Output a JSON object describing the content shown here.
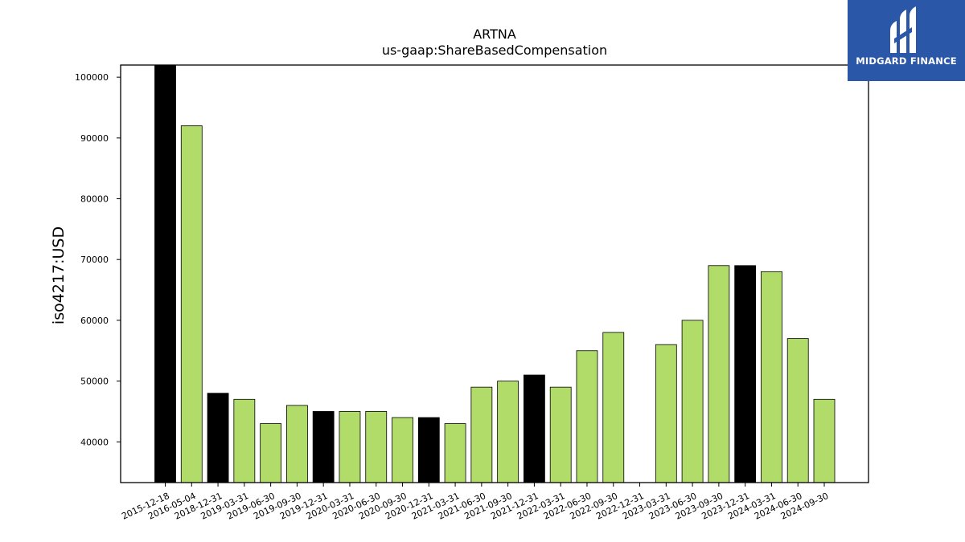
{
  "brand": {
    "name": "MIDGARD FINANCE",
    "bg_color": "#2b57a8",
    "icon": "midgard-finance-logo-mark"
  },
  "chart_data": {
    "type": "bar",
    "title_lines": [
      "ARTNA",
      "us-gaap:ShareBasedCompensation"
    ],
    "xlabel": "",
    "ylabel": "iso4217:USD",
    "ylim": [
      33300,
      102000
    ],
    "yticks": [
      40000,
      50000,
      60000,
      70000,
      80000,
      90000,
      100000
    ],
    "grid": false,
    "categories": [
      "2015-12-18",
      "2016-05-04",
      "2018-12-31",
      "2019-03-31",
      "2019-06-30",
      "2019-09-30",
      "2019-12-31",
      "2020-03-31",
      "2020-06-30",
      "2020-09-30",
      "2020-12-31",
      "2021-03-31",
      "2021-06-30",
      "2021-09-30",
      "2021-12-31",
      "2022-03-31",
      "2022-06-30",
      "2022-09-30",
      "2022-12-31",
      "2023-03-31",
      "2023-06-30",
      "2023-09-30",
      "2023-12-31",
      "2024-03-31",
      "2024-06-30",
      "2024-09-30"
    ],
    "values": [
      102000,
      92000,
      48000,
      47000,
      43000,
      46000,
      45000,
      45000,
      45000,
      44000,
      44000,
      43000,
      49000,
      50000,
      51000,
      49000,
      55000,
      58000,
      null,
      56000,
      60000,
      69000,
      69000,
      68000,
      57000,
      47000
    ],
    "annual_flags": [
      true,
      false,
      true,
      false,
      false,
      false,
      true,
      false,
      false,
      false,
      true,
      false,
      false,
      false,
      true,
      false,
      false,
      false,
      true,
      false,
      false,
      false,
      true,
      false,
      false,
      false
    ],
    "colors": {
      "annual": "#000000",
      "quarterly": "#b1dc6a",
      "edge": "#000000"
    }
  }
}
